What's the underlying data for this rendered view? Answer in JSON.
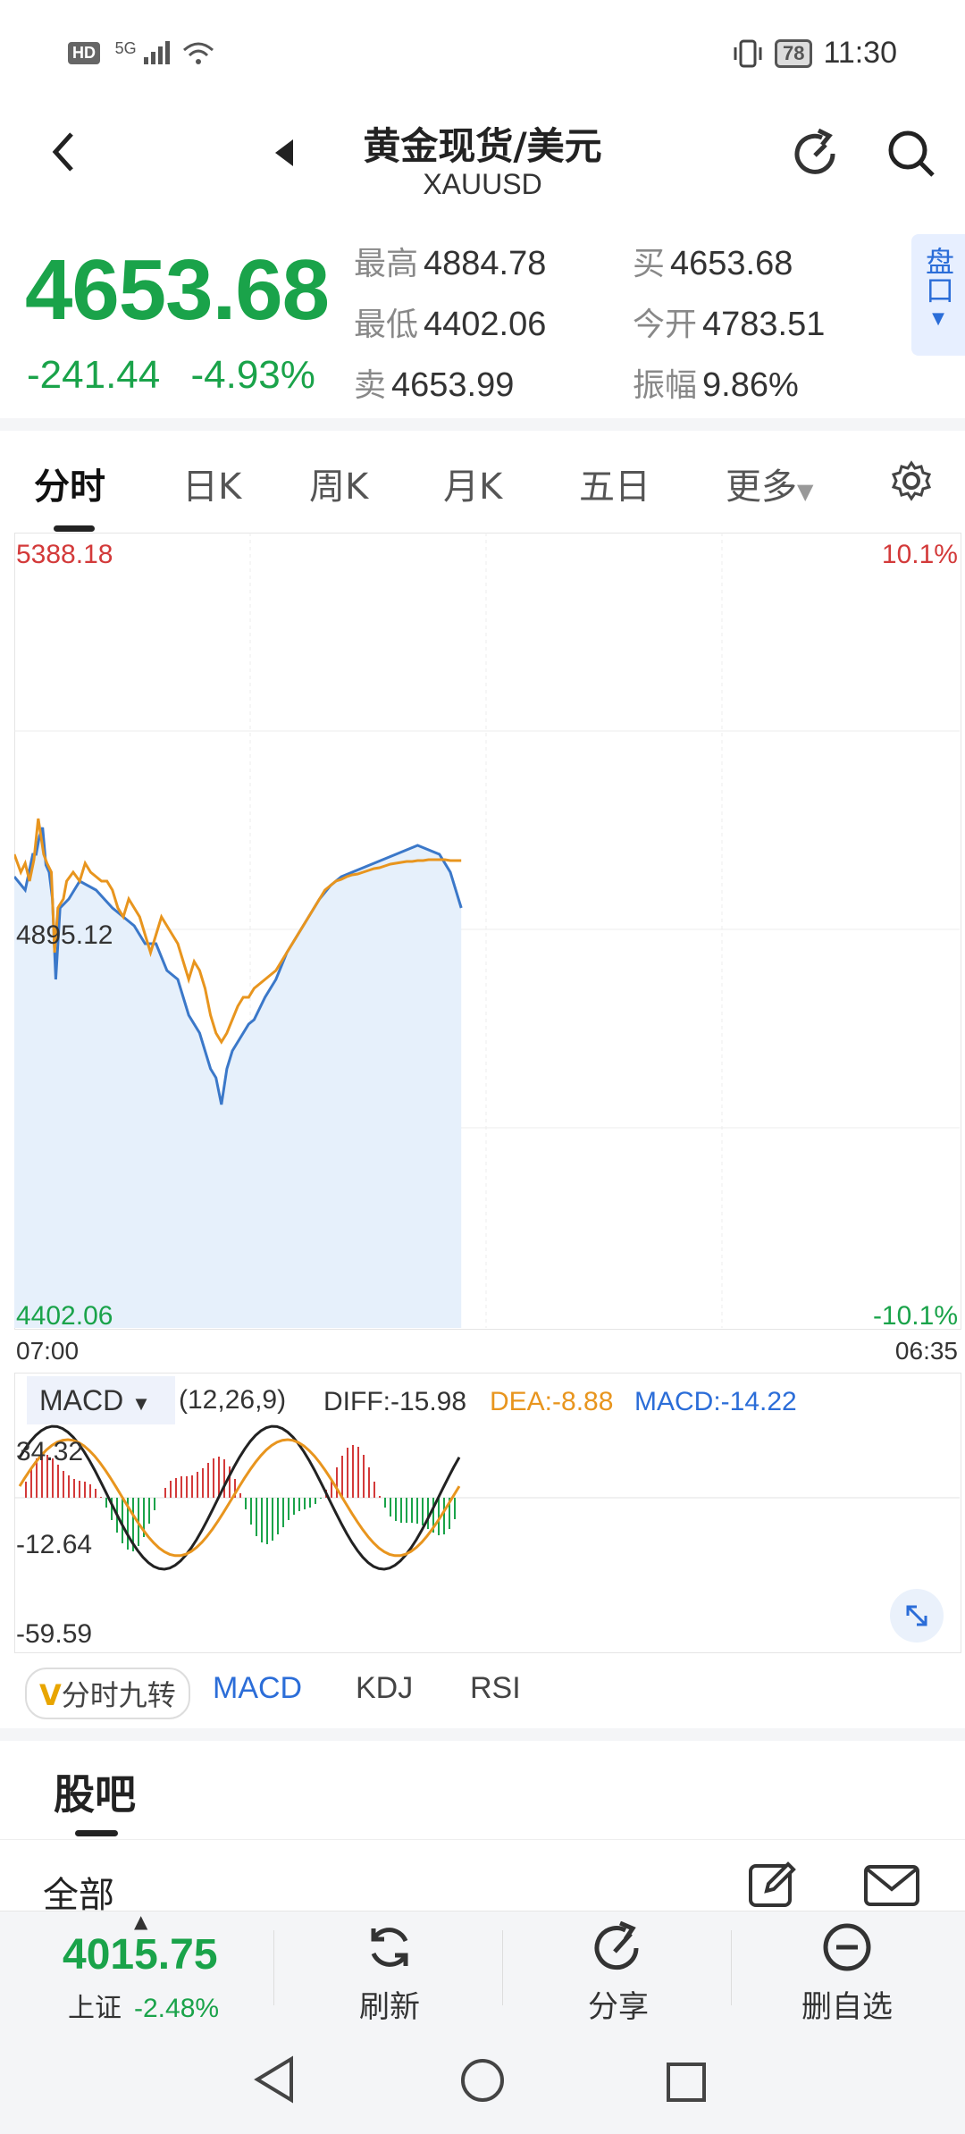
{
  "status_bar": {
    "network": "HD",
    "signal": "5G",
    "battery": "78",
    "time": "11:30"
  },
  "header": {
    "title": "黄金现货/美元",
    "subtitle": "XAUUSD"
  },
  "quote": {
    "price": "4653.68",
    "change": "-241.44",
    "change_pct": "-4.93%",
    "high_label": "最高",
    "high": "4884.78",
    "low_label": "最低",
    "low": "4402.06",
    "ask_label": "卖",
    "ask": "4653.99",
    "bid_label": "买",
    "bid": "4653.68",
    "open_label": "今开",
    "open": "4783.51",
    "amp_label": "振幅",
    "amp": "9.86%",
    "panel_btn": "盘口"
  },
  "tabs": [
    "分时",
    "日K",
    "周K",
    "月K",
    "五日",
    "更多"
  ],
  "chart": {
    "top_price": "5388.18",
    "mid_price": "4895.12",
    "bottom_price": "4402.06",
    "top_pct": "10.1%",
    "bottom_pct": "-10.1%",
    "start_time": "07:00",
    "end_time": "06:35",
    "colors": {
      "price": "#3b78c9",
      "avg": "#e8951e",
      "up": "#d33a3a",
      "down": "#1aa34a"
    }
  },
  "macd": {
    "selector": "MACD",
    "params": "(12,26,9)",
    "diff": "DIFF:-15.98",
    "dea": "DEA:-8.88",
    "macd": "MACD:-14.22",
    "y_top": "34.32",
    "y_mid": "-12.64",
    "y_bottom": "-59.59"
  },
  "indicators": {
    "v": "V",
    "nine": "分时九转",
    "macd": "MACD",
    "kdj": "KDJ",
    "rsi": "RSI"
  },
  "guba": {
    "title": "股吧",
    "all": "全部"
  },
  "bottom": {
    "index_price": "4015.75",
    "index_name": "上证",
    "index_pct": "-2.48%",
    "refresh": "刷新",
    "share": "分享",
    "remove": "删自选"
  }
}
